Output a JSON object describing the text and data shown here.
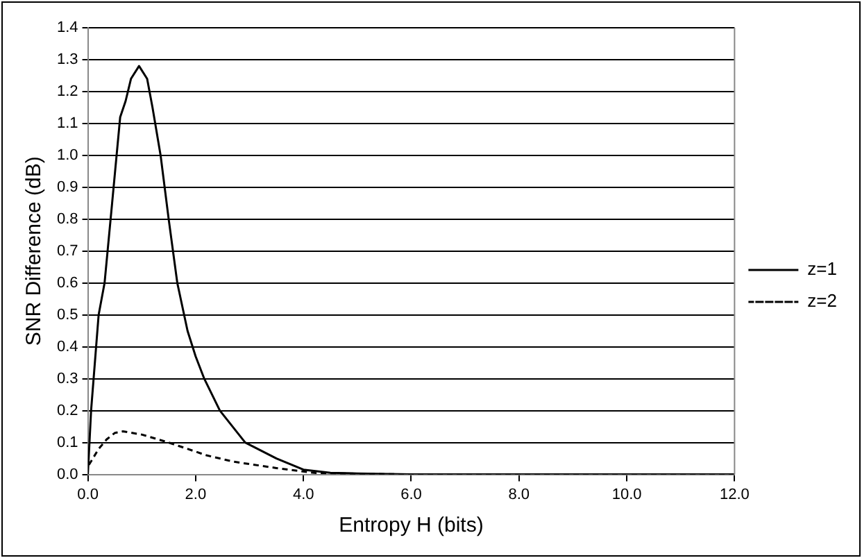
{
  "chart_data": {
    "type": "line",
    "xlabel": "Entropy H (bits)",
    "ylabel": "SNR Difference (dB)",
    "xlim": [
      0,
      12
    ],
    "xticks": [
      {
        "value": 0,
        "label": "0.0"
      },
      {
        "value": 2,
        "label": "2.0"
      },
      {
        "value": 4,
        "label": "4.0"
      },
      {
        "value": 6,
        "label": "6.0"
      },
      {
        "value": 8,
        "label": "8.0"
      },
      {
        "value": 10,
        "label": "10.0"
      },
      {
        "value": 12,
        "label": "12.0"
      }
    ],
    "ylim": [
      0,
      1.4
    ],
    "yticks": [
      {
        "value": 0,
        "label": "0.0"
      },
      {
        "value": 0.1,
        "label": "0.1"
      },
      {
        "value": 0.2,
        "label": "0.2"
      },
      {
        "value": 0.3,
        "label": "0.3"
      },
      {
        "value": 0.4,
        "label": "0.4"
      },
      {
        "value": 0.5,
        "label": "0.5"
      },
      {
        "value": 0.6,
        "label": "0.6"
      },
      {
        "value": 0.7,
        "label": "0.7"
      },
      {
        "value": 0.8,
        "label": "0.8"
      },
      {
        "value": 0.9,
        "label": "0.9"
      },
      {
        "value": 1,
        "label": "1.0"
      },
      {
        "value": 1.1,
        "label": "1.1"
      },
      {
        "value": 1.2,
        "label": "1.2"
      },
      {
        "value": 1.3,
        "label": "1.3"
      },
      {
        "value": 1.4,
        "label": "1.4"
      }
    ],
    "grid": "y",
    "legend": "right",
    "marker": "none",
    "series": [
      {
        "name": "z=1",
        "color": "#000000",
        "line_style": "solid",
        "x": [
          0,
          0.06,
          0.2,
          0.31,
          0.45,
          0.6,
          0.7,
          0.8,
          0.95,
          1.1,
          1.2,
          1.35,
          1.5,
          1.66,
          1.85,
          2.0,
          2.16,
          2.45,
          2.92,
          3.5,
          4.0,
          4.5,
          5.0,
          6.0,
          8.0,
          10.0,
          12.0
        ],
        "values": [
          0,
          0.2,
          0.5,
          0.6,
          0.85,
          1.12,
          1.17,
          1.24,
          1.28,
          1.24,
          1.15,
          1.0,
          0.8,
          0.6,
          0.45,
          0.37,
          0.3,
          0.2,
          0.1,
          0.05,
          0.015,
          0.005,
          0.003,
          0,
          0,
          0,
          0
        ]
      },
      {
        "name": "z=2",
        "color": "#000000",
        "line_style": "dashed",
        "x": [
          0.02,
          0.2,
          0.35,
          0.5,
          0.65,
          1.0,
          1.5,
          2.2,
          2.7,
          3.5,
          4.2,
          5.0,
          6.0,
          8.0,
          10.0,
          12.0
        ],
        "values": [
          0.03,
          0.08,
          0.11,
          0.13,
          0.135,
          0.125,
          0.1,
          0.06,
          0.04,
          0.02,
          0.005,
          0.002,
          0,
          0,
          0,
          0
        ]
      }
    ]
  }
}
